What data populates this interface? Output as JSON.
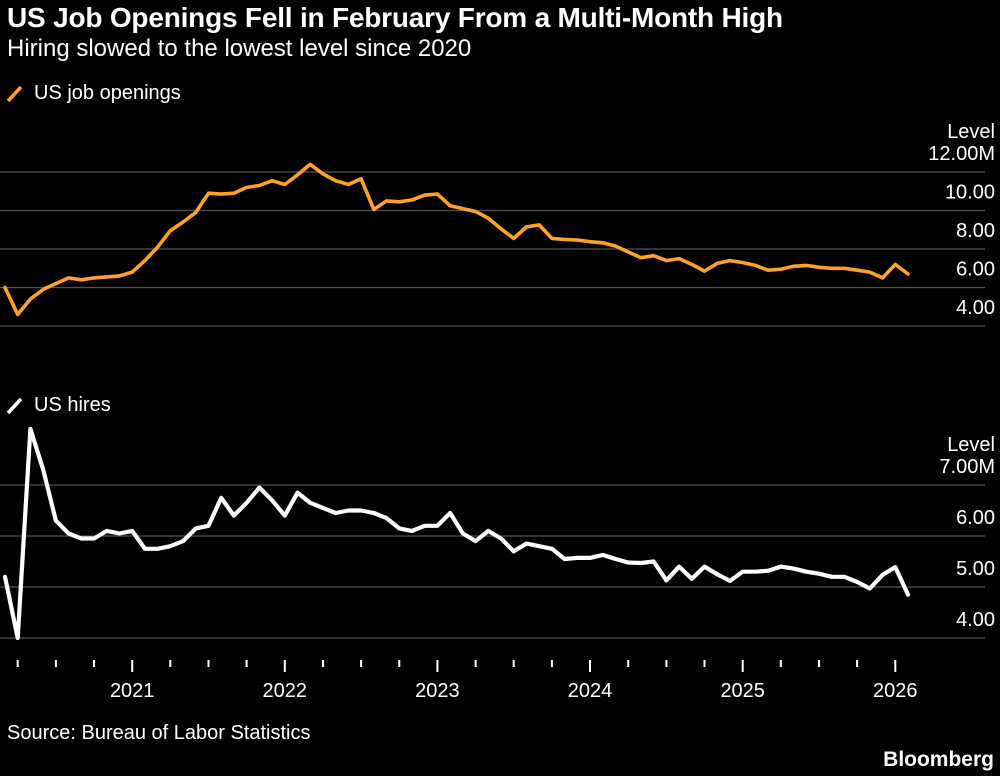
{
  "header": {
    "title": "US Job Openings Fell in February From a Multi-Month High",
    "subtitle": "Hiring slowed to the lowest level since 2020"
  },
  "x_axis": {
    "years": [
      "2021",
      "2022",
      "2023",
      "2024",
      "2025",
      "2026"
    ]
  },
  "footer": {
    "source": "Source: Bureau of Labor Statistics",
    "brand": "Bloomberg"
  },
  "chart_data": [
    {
      "type": "line",
      "name": "US job openings",
      "color": "#FFA028",
      "axis_title": "Level",
      "unit": "millions",
      "x_freq": "monthly",
      "x_start": "2020-03",
      "x_end": "2026-02",
      "yticks": [
        12,
        10,
        8,
        6,
        4
      ],
      "ytick_labels": [
        "12.00M",
        "10.00",
        "8.00",
        "6.00",
        "4.00"
      ],
      "grid": true,
      "legend_position": "top-left",
      "values": [
        6.0,
        4.6,
        5.4,
        5.9,
        6.2,
        6.5,
        6.4,
        6.5,
        6.55,
        6.6,
        6.8,
        7.4,
        8.1,
        8.95,
        9.4,
        9.9,
        10.9,
        10.85,
        10.9,
        11.2,
        11.3,
        11.55,
        11.35,
        11.85,
        12.4,
        11.9,
        11.55,
        11.35,
        11.65,
        10.05,
        10.5,
        10.45,
        10.55,
        10.8,
        10.85,
        10.25,
        10.1,
        9.95,
        9.6,
        9.05,
        8.55,
        9.15,
        9.25,
        8.55,
        8.5,
        8.47,
        8.38,
        8.32,
        8.15,
        7.85,
        7.55,
        7.65,
        7.4,
        7.5,
        7.2,
        6.85,
        7.25,
        7.4,
        7.3,
        7.15,
        6.9,
        6.95,
        7.1,
        7.15,
        7.05,
        7.0,
        7.0,
        6.9,
        6.8,
        6.5,
        7.2,
        6.7
      ]
    },
    {
      "type": "line",
      "name": "US hires",
      "color": "#FFFFFF",
      "axis_title": "Level",
      "unit": "millions",
      "x_freq": "monthly",
      "x_start": "2020-03",
      "x_end": "2026-02",
      "yticks": [
        7,
        6,
        5,
        4
      ],
      "ytick_labels": [
        "7.00M",
        "6.00",
        "5.00",
        "4.00"
      ],
      "grid": true,
      "legend_position": "top-left",
      "values": [
        5.2,
        4.0,
        8.1,
        7.3,
        6.3,
        6.05,
        5.95,
        5.95,
        6.1,
        6.05,
        6.1,
        5.75,
        5.75,
        5.8,
        5.9,
        6.15,
        6.2,
        6.75,
        6.4,
        6.65,
        6.95,
        6.7,
        6.4,
        6.85,
        6.65,
        6.55,
        6.45,
        6.5,
        6.5,
        6.45,
        6.35,
        6.15,
        6.1,
        6.2,
        6.2,
        6.45,
        6.05,
        5.9,
        6.1,
        5.95,
        5.7,
        5.85,
        5.8,
        5.75,
        5.55,
        5.57,
        5.57,
        5.63,
        5.55,
        5.48,
        5.47,
        5.5,
        5.13,
        5.4,
        5.16,
        5.4,
        5.25,
        5.12,
        5.3,
        5.3,
        5.32,
        5.4,
        5.36,
        5.3,
        5.26,
        5.2,
        5.2,
        5.1,
        4.97,
        5.24,
        5.39,
        4.85
      ]
    }
  ]
}
